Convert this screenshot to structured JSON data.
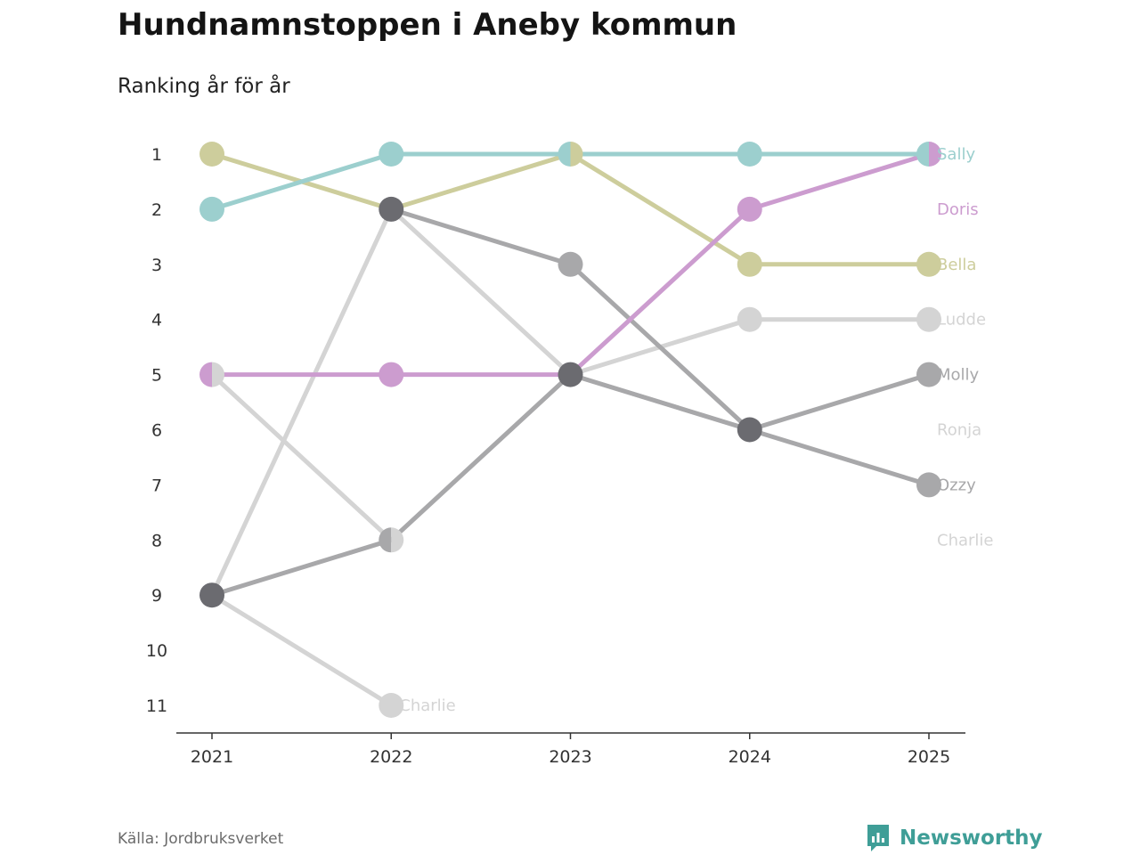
{
  "title": "Hundnamnstoppen i Aneby kommun",
  "subtitle": "Ranking år för år",
  "source": "Källa: Jordbruksverket",
  "brand": "Newsworthy",
  "colors": {
    "Sally": "#9ccfce",
    "Doris": "#cc9ccf",
    "Bella": "#cdcd9c",
    "Ludde": "#d4d4d4",
    "Molly": "#a8a8aa",
    "Ronja": "#d4d4d4",
    "Ozzy": "#a8a8aa",
    "Charlie": "#d4d4d4",
    "Dark": "#6b6b70",
    "axis": "#333333",
    "brand": "#3f9e97"
  },
  "chart_data": {
    "type": "line",
    "x": [
      2021,
      2022,
      2023,
      2024,
      2025
    ],
    "y_ticks": [
      1,
      2,
      3,
      4,
      5,
      6,
      7,
      8,
      9,
      10,
      11
    ],
    "ylim": [
      1,
      11
    ],
    "y_inverted": true,
    "series": [
      {
        "name": "Sally",
        "values": [
          2,
          1,
          1,
          1,
          1
        ]
      },
      {
        "name": "Doris",
        "values": [
          5,
          5,
          5,
          2,
          1
        ]
      },
      {
        "name": "Bella",
        "values": [
          1,
          2,
          1,
          3,
          3
        ]
      },
      {
        "name": "Ludde",
        "values": [
          9,
          2,
          5,
          4,
          4
        ]
      },
      {
        "name": "Molly",
        "values": [
          9,
          8,
          5,
          6,
          5
        ]
      },
      {
        "name": "Ronja",
        "values": [
          5,
          8,
          5,
          6,
          null
        ]
      },
      {
        "name": "Ozzy",
        "values": [
          null,
          2,
          3,
          6,
          7
        ]
      },
      {
        "name": "Charlie",
        "values": [
          9,
          11,
          null,
          null,
          null
        ]
      }
    ],
    "end_labels": [
      {
        "name": "Sally",
        "rank": 1
      },
      {
        "name": "Doris",
        "rank": 2
      },
      {
        "name": "Bella",
        "rank": 3
      },
      {
        "name": "Ludde",
        "rank": 4
      },
      {
        "name": "Molly",
        "rank": 5
      },
      {
        "name": "Ronja",
        "rank": 6
      },
      {
        "name": "Ozzy",
        "rank": 7
      },
      {
        "name": "Charlie",
        "rank": 8
      }
    ],
    "inline_label": {
      "name": "Charlie",
      "year": 2022,
      "rank": 11
    },
    "legend": "none",
    "grid": false
  }
}
